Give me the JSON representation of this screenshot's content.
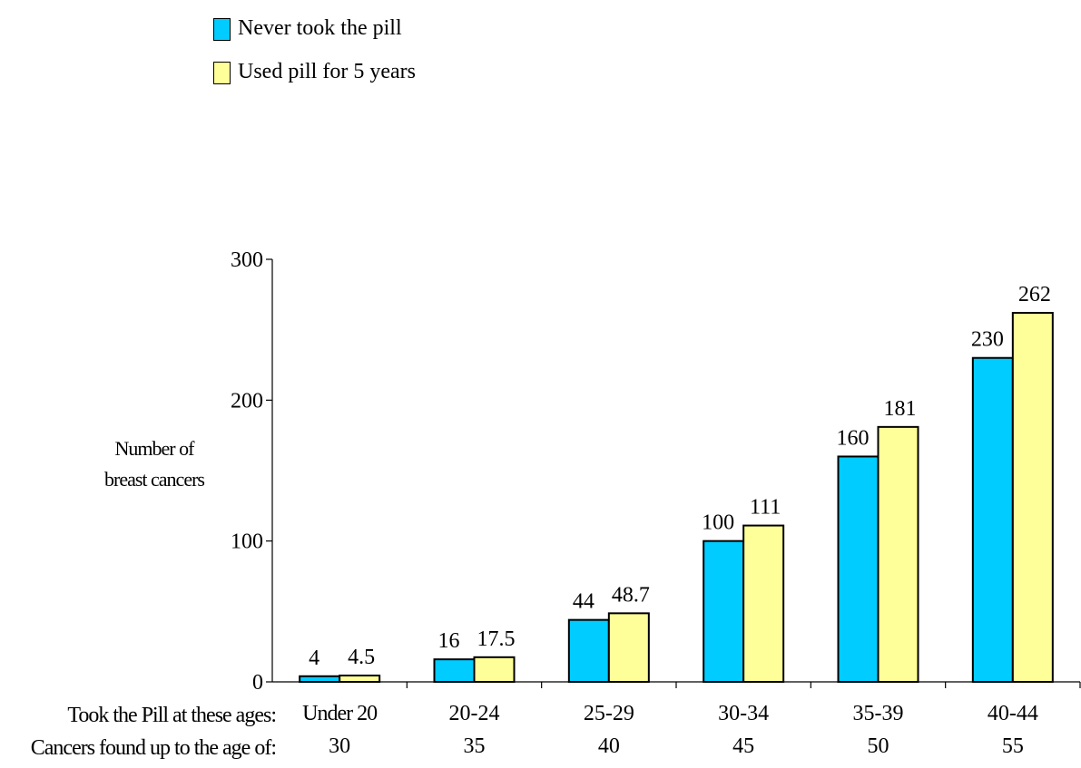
{
  "chart_data": {
    "type": "bar",
    "categories": [
      "Under 20",
      "20-24",
      "25-29",
      "30-34",
      "35-39",
      "40-44"
    ],
    "secondary_categories": [
      "30",
      "35",
      "40",
      "45",
      "50",
      "55"
    ],
    "series": [
      {
        "name": "Never took the pill",
        "color": "#00CCFF",
        "values": [
          4,
          16,
          44,
          100,
          160,
          230
        ],
        "labels": [
          "4",
          "16",
          "44",
          "100",
          "160",
          "230"
        ]
      },
      {
        "name": "Used pill for 5 years",
        "color": "#FFFF99",
        "values": [
          4.5,
          17.5,
          48.7,
          111,
          181,
          262
        ],
        "labels": [
          "4.5",
          "17.5",
          "48.7",
          "111",
          "181",
          "262"
        ]
      }
    ],
    "ylabel_lines": [
      "Number of",
      "breast cancers"
    ],
    "row_labels": [
      "Took the Pill at these ages:",
      "Cancers found up to the age of:"
    ],
    "yticks": [
      "0",
      "100",
      "200",
      "300"
    ],
    "ylim": [
      0,
      300
    ],
    "legend_position": "top-left",
    "grid": false
  }
}
